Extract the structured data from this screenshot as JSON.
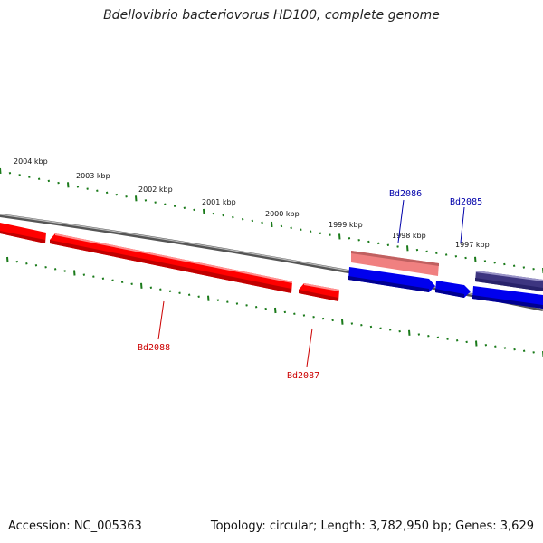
{
  "title": "Bdellovibrio bacteriovorus HD100, complete genome",
  "footer": {
    "accession": "Accession: NC_005363",
    "summary": "Topology: circular; Length: 3,782,950 bp; Genes: 3,629"
  },
  "colors": {
    "backbone": "#777777",
    "ticks": "#1a7a1a",
    "reverse_gene": "#ff0000",
    "reverse_gene_light": "#f08080",
    "forward_gene": "#0000ee",
    "forward_gene_dark": "#3d3580",
    "label_reverse": "#cc0000",
    "label_forward": "#0000aa"
  },
  "scale_labels": [
    "2004 kbp",
    "2003 kbp",
    "2002 kbp",
    "2001 kbp",
    "2000 kbp",
    "1999 kbp",
    "1998 kbp",
    "1997 kbp"
  ],
  "gene_labels": {
    "bd2088": "Bd2088",
    "bd2087": "Bd2087",
    "bd2086": "Bd2086",
    "bd2085": "Bd2085"
  }
}
